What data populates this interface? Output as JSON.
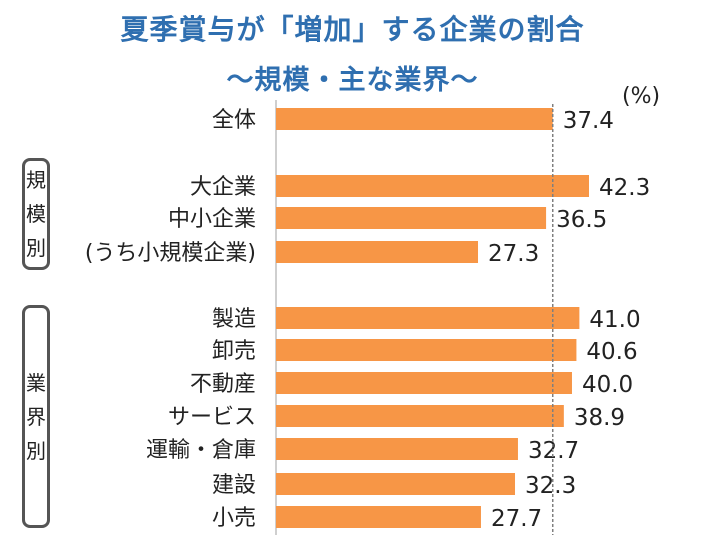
{
  "title": "夏季賞与が「増加」する企業の割合",
  "subtitle": "～規模・主な業界～",
  "unit": "(%)",
  "groups": [
    {
      "label_chars": [
        "規",
        "模",
        "別"
      ]
    },
    {
      "label_chars": [
        "業",
        "界",
        "別"
      ]
    }
  ],
  "chart_data": {
    "type": "bar",
    "orientation": "horizontal",
    "categories": [
      "全体",
      "大企業",
      "中小企業",
      "(うち小規模企業)",
      "製造",
      "卸売",
      "不動産",
      "サービス",
      "運輸・倉庫",
      "建設",
      "小売"
    ],
    "values": [
      37.4,
      42.3,
      36.5,
      27.3,
      41.0,
      40.6,
      40.0,
      38.9,
      32.7,
      32.3,
      27.7
    ],
    "value_labels": [
      "37.4",
      "42.3",
      "36.5",
      "27.3",
      "41.0",
      "40.6",
      "40.0",
      "38.9",
      "32.7",
      "32.3",
      "27.7"
    ],
    "reference_line": 37.4,
    "bar_color": "#f79646",
    "axis_color": "#bfbfbf",
    "reference_color": "#7f7f7f",
    "xlim": [
      0,
      45
    ],
    "grid": false
  }
}
